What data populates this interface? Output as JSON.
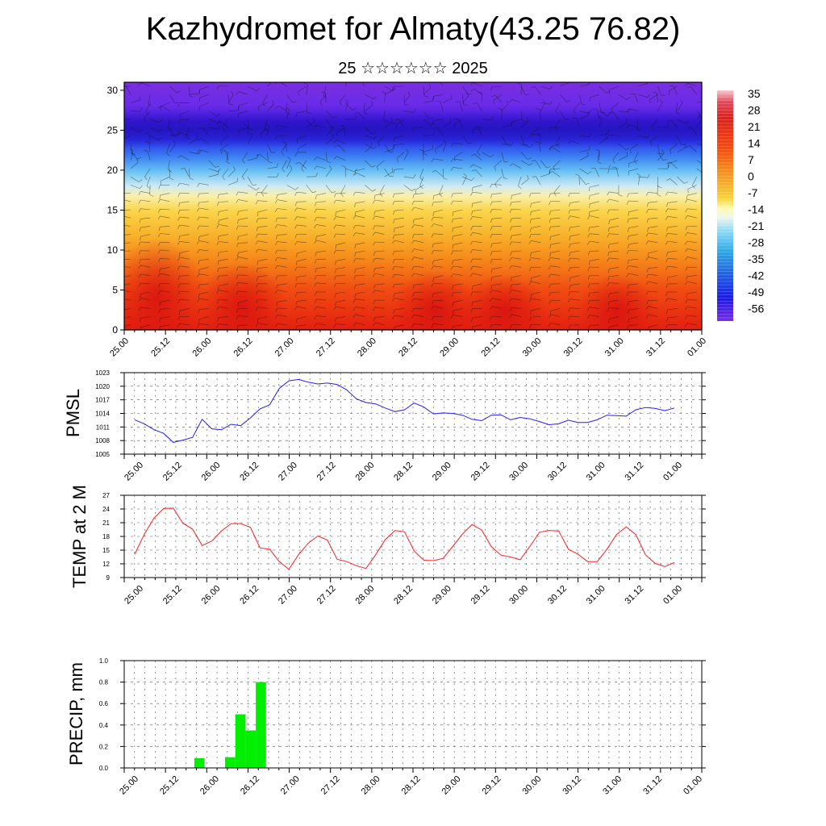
{
  "title": "Kazhydromet for Almaty(43.25 76.82)",
  "subtitle": "25 ☆☆☆☆☆☆ 2025",
  "chart_data": [
    {
      "type": "heatmap",
      "name": "temperature-wind-section",
      "x_tick_labels": [
        "25.00",
        "25.12",
        "26.00",
        "26.12",
        "27.00",
        "27.12",
        "28.00",
        "28.12",
        "29.00",
        "29.12",
        "30.00",
        "30.12",
        "31.00",
        "31.12",
        "01.00"
      ],
      "ylim": [
        0,
        31
      ],
      "y_ticks": [
        0,
        5,
        10,
        15,
        20,
        25,
        30
      ],
      "colorbar_labels": [
        "35",
        "28",
        "21",
        "14",
        "7",
        "0",
        "-7",
        "-14",
        "-21",
        "-28",
        "-35",
        "-42",
        "-49",
        "-56"
      ],
      "colorbar_range": [
        -60,
        38
      ],
      "overlay": "wind barbs"
    },
    {
      "type": "line",
      "name": "pmsl",
      "ylabel": "PMSL",
      "ylim": [
        1005,
        1023
      ],
      "y_ticks": [
        1005,
        1008,
        1011,
        1014,
        1017,
        1020,
        1023
      ],
      "x_tick_labels": [
        "25.00",
        "25.12",
        "26.00",
        "26.12",
        "27.00",
        "27.12",
        "28.00",
        "28.12",
        "29.00",
        "29.12",
        "30.00",
        "30.12",
        "31.00",
        "31.12",
        "01.00"
      ],
      "series": [
        {
          "color": "#1f1fff",
          "values": [
            1012.6,
            1011.7,
            1010.4,
            1009.6,
            1007.6,
            1008.1,
            1008.7,
            1012.7,
            1010.6,
            1010.4,
            1011.6,
            1011.3,
            1013.0,
            1015.0,
            1015.9,
            1019.5,
            1021.2,
            1021.5,
            1020.9,
            1020.5,
            1020.7,
            1020.4,
            1019.2,
            1017.2,
            1016.4,
            1016.1,
            1015.2,
            1014.4,
            1014.8,
            1016.3,
            1015.4,
            1013.9,
            1014.1,
            1014.0,
            1013.6,
            1012.7,
            1012.4,
            1013.6,
            1013.7,
            1012.6,
            1013.1,
            1012.8,
            1012.2,
            1011.5,
            1011.7,
            1012.5,
            1012.0,
            1012.0,
            1012.6,
            1013.6,
            1013.5,
            1013.4,
            1014.8,
            1015.3,
            1015.1,
            1014.6,
            1015.2
          ]
        }
      ]
    },
    {
      "type": "line",
      "name": "temp-2m",
      "ylabel": "TEMP at 2 M",
      "ylim": [
        9,
        27
      ],
      "y_ticks": [
        9,
        12,
        15,
        18,
        21,
        24,
        27
      ],
      "x_tick_labels": [
        "25.00",
        "25.12",
        "26.00",
        "26.12",
        "27.00",
        "27.12",
        "28.00",
        "28.12",
        "29.00",
        "29.12",
        "30.00",
        "30.12",
        "31.00",
        "31.12",
        "01.00"
      ],
      "series": [
        {
          "color": "#ff1f1f",
          "values": [
            14.1,
            18.5,
            22.0,
            24.1,
            24.2,
            20.9,
            19.6,
            16.0,
            17.0,
            19.2,
            20.8,
            20.8,
            20.0,
            15.5,
            15.2,
            12.5,
            10.8,
            14.0,
            16.5,
            18.1,
            17.2,
            13.0,
            12.5,
            11.6,
            11.0,
            14.0,
            17.3,
            19.3,
            19.0,
            14.8,
            12.8,
            12.7,
            13.2,
            15.8,
            18.5,
            20.6,
            19.4,
            15.8,
            13.9,
            13.5,
            12.9,
            15.8,
            18.9,
            19.3,
            19.2,
            15.2,
            14.1,
            12.5,
            12.5,
            15.2,
            18.4,
            20.1,
            18.4,
            14.0,
            12.1,
            11.4,
            12.3
          ]
        }
      ]
    },
    {
      "type": "bar",
      "name": "precip",
      "ylabel": "PRECIP, mm",
      "ylim": [
        0,
        1
      ],
      "y_ticks": [
        "0.0",
        "0.2",
        "0.4",
        "0.6",
        "0.8",
        "1.0"
      ],
      "x_tick_labels": [
        "25.00",
        "25.12",
        "26.00",
        "26.12",
        "27.00",
        "27.12",
        "28.00",
        "28.12",
        "29.00",
        "29.12",
        "30.00",
        "30.12",
        "31.00",
        "31.12",
        "01.00"
      ],
      "bar_color": "#00ee00",
      "values": [
        0,
        0,
        0,
        0,
        0,
        0,
        0,
        0.09,
        0,
        0,
        0.1,
        0.5,
        0.35,
        0.8,
        0,
        0,
        0,
        0,
        0,
        0,
        0,
        0,
        0,
        0,
        0,
        0,
        0,
        0,
        0,
        0,
        0,
        0,
        0,
        0,
        0,
        0,
        0,
        0,
        0,
        0,
        0,
        0,
        0,
        0,
        0,
        0,
        0,
        0,
        0,
        0,
        0,
        0,
        0,
        0,
        0,
        0
      ]
    }
  ]
}
